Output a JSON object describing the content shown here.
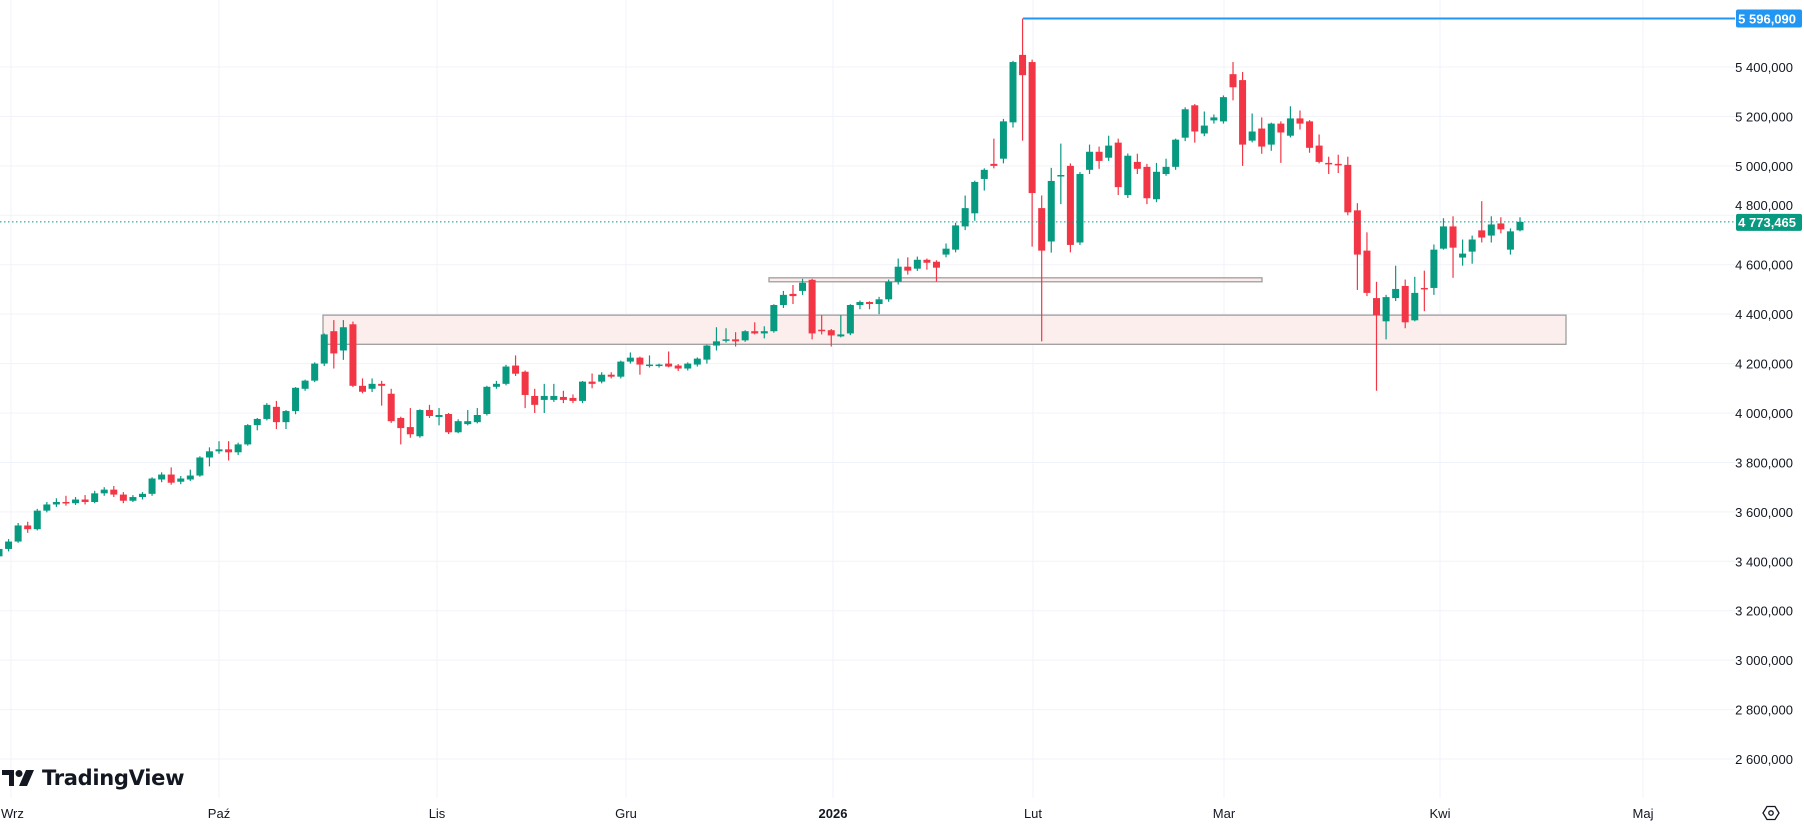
{
  "branding": {
    "logo_text": "TradingView"
  },
  "colors": {
    "up": "#089981",
    "down": "#f23645",
    "high_line": "#2196f3",
    "zone_fill": "#fdeeee",
    "zone_border": "#9e9e9e",
    "grid": "#f0f3fa"
  },
  "price_tags": {
    "high": "5 596,090",
    "last": "4 773,465"
  },
  "chart_data": {
    "type": "candlestick",
    "title": "",
    "ylim": [
      2500000,
      5620000
    ],
    "grid": true,
    "y_ticks": [
      5400000,
      5200000,
      5000000,
      4800000,
      4600000,
      4400000,
      4200000,
      4000000,
      3800000,
      3600000,
      3400000,
      3200000,
      3000000,
      2800000,
      2600000
    ],
    "y_tick_labels": [
      "5 400,000",
      "5 200,000",
      "5 000,000",
      "4 800,000",
      "4 600,000",
      "4 400,000",
      "4 200,000",
      "4 000,000",
      "3 800,000",
      "3 600,000",
      "3 400,000",
      "3 200,000",
      "3 000,000",
      "2 800,000",
      "2 600,000"
    ],
    "x_tick_labels": [
      "Wrz",
      "Paź",
      "Lis",
      "Gru",
      "2026",
      "Lut",
      "Mar",
      "Kwi",
      "Maj"
    ],
    "last_price": 4773465,
    "high_price": 5596090,
    "drawings": {
      "support_zone": {
        "top": 4396000,
        "bottom": 4278000
      },
      "resistance_box": {
        "top": 4547000,
        "bottom": 4531000
      },
      "high_line": 5596090
    },
    "ohlc_fields": [
      "open",
      "high",
      "low",
      "close"
    ],
    "candles": [
      [
        3420000,
        3460000,
        3405000,
        3450000
      ],
      [
        3450000,
        3490000,
        3440000,
        3480000
      ],
      [
        3480000,
        3555000,
        3475000,
        3545000
      ],
      [
        3545000,
        3560000,
        3515000,
        3530000
      ],
      [
        3530000,
        3612000,
        3525000,
        3605000
      ],
      [
        3605000,
        3640000,
        3598000,
        3630000
      ],
      [
        3630000,
        3655000,
        3620000,
        3640000
      ],
      [
        3640000,
        3665000,
        3625000,
        3635000
      ],
      [
        3635000,
        3660000,
        3628000,
        3650000
      ],
      [
        3650000,
        3668000,
        3630000,
        3640000
      ],
      [
        3640000,
        3685000,
        3635000,
        3675000
      ],
      [
        3675000,
        3700000,
        3665000,
        3690000
      ],
      [
        3690000,
        3705000,
        3660000,
        3670000
      ],
      [
        3670000,
        3680000,
        3635000,
        3645000
      ],
      [
        3645000,
        3668000,
        3640000,
        3660000
      ],
      [
        3660000,
        3680000,
        3650000,
        3673000
      ],
      [
        3673000,
        3740000,
        3665000,
        3735000
      ],
      [
        3731000,
        3760000,
        3720000,
        3751000
      ],
      [
        3751000,
        3780000,
        3710000,
        3718000
      ],
      [
        3722000,
        3745000,
        3712000,
        3735000
      ],
      [
        3731000,
        3771000,
        3725000,
        3747000
      ],
      [
        3747000,
        3825000,
        3742000,
        3820000
      ],
      [
        3820000,
        3861000,
        3784000,
        3845000
      ],
      [
        3845000,
        3886000,
        3835000,
        3853000
      ],
      [
        3853000,
        3886000,
        3808000,
        3841000
      ],
      [
        3841000,
        3880000,
        3830000,
        3873000
      ],
      [
        3873000,
        3955000,
        3868000,
        3951000
      ],
      [
        3951000,
        3980000,
        3930000,
        3976000
      ],
      [
        3976000,
        4040000,
        3970000,
        4033000
      ],
      [
        4025000,
        4049000,
        3935000,
        3963000
      ],
      [
        3963000,
        4012000,
        3935000,
        4008000
      ],
      [
        4008000,
        4105000,
        3995000,
        4102000
      ],
      [
        4098000,
        4135000,
        4090000,
        4131000
      ],
      [
        4131000,
        4205000,
        4125000,
        4200000
      ],
      [
        4200000,
        4322000,
        4190000,
        4318000
      ],
      [
        4331000,
        4376000,
        4180000,
        4241000
      ],
      [
        4253000,
        4376000,
        4215000,
        4347000
      ],
      [
        4359000,
        4370000,
        4105000,
        4110000
      ],
      [
        4110000,
        4140000,
        4080000,
        4086000
      ],
      [
        4098000,
        4140000,
        4085000,
        4118000
      ],
      [
        4118000,
        4130000,
        4030000,
        4110000
      ],
      [
        4078000,
        4098000,
        3960000,
        3967000
      ],
      [
        3980000,
        3985000,
        3873000,
        3939000
      ],
      [
        3943000,
        4020000,
        3900000,
        3914000
      ],
      [
        3906000,
        4015000,
        3900000,
        4012000
      ],
      [
        4012000,
        4033000,
        3980000,
        3988000
      ],
      [
        3984000,
        4020000,
        3950000,
        3992000
      ],
      [
        3996000,
        4000000,
        3915000,
        3922000
      ],
      [
        3922000,
        3975000,
        3918000,
        3967000
      ],
      [
        3955000,
        4012000,
        3950000,
        3967000
      ],
      [
        3963000,
        4020000,
        3958000,
        3992000
      ],
      [
        3996000,
        4110000,
        3990000,
        4106000
      ],
      [
        4106000,
        4130000,
        4098000,
        4118000
      ],
      [
        4118000,
        4195000,
        4112000,
        4188000
      ],
      [
        4192000,
        4233000,
        4150000,
        4159000
      ],
      [
        4167000,
        4172000,
        4020000,
        4073000
      ],
      [
        4069000,
        4098000,
        4000000,
        4033000
      ],
      [
        4053000,
        4118000,
        4000000,
        4069000
      ],
      [
        4053000,
        4118000,
        4045000,
        4069000
      ],
      [
        4065000,
        4090000,
        4040000,
        4053000
      ],
      [
        4061000,
        4075000,
        4040000,
        4049000
      ],
      [
        4049000,
        4130000,
        4040000,
        4127000
      ],
      [
        4127000,
        4160000,
        4100000,
        4118000
      ],
      [
        4127000,
        4165000,
        4120000,
        4155000
      ],
      [
        4155000,
        4165000,
        4140000,
        4147000
      ],
      [
        4147000,
        4212000,
        4140000,
        4208000
      ],
      [
        4208000,
        4245000,
        4200000,
        4224000
      ],
      [
        4224000,
        4228000,
        4155000,
        4196000
      ],
      [
        4190000,
        4233000,
        4184000,
        4196000
      ],
      [
        4192000,
        4200000,
        4184000,
        4196000
      ],
      [
        4200000,
        4249000,
        4185000,
        4188000
      ],
      [
        4192000,
        4198000,
        4170000,
        4180000
      ],
      [
        4180000,
        4205000,
        4172000,
        4200000
      ],
      [
        4196000,
        4225000,
        4188000,
        4220000
      ],
      [
        4216000,
        4276000,
        4200000,
        4273000
      ],
      [
        4273000,
        4347000,
        4253000,
        4290000
      ],
      [
        4294000,
        4343000,
        4285000,
        4298000
      ],
      [
        4298000,
        4327000,
        4269000,
        4290000
      ],
      [
        4294000,
        4335000,
        4288000,
        4331000
      ],
      [
        4331000,
        4367000,
        4318000,
        4322000
      ],
      [
        4322000,
        4351000,
        4302000,
        4331000
      ],
      [
        4331000,
        4440000,
        4325000,
        4437000
      ],
      [
        4437000,
        4494000,
        4425000,
        4478000
      ],
      [
        4482000,
        4518000,
        4441000,
        4473000
      ],
      [
        4494000,
        4543000,
        4478000,
        4527000
      ],
      [
        4539000,
        4543000,
        4298000,
        4322000
      ],
      [
        4337000,
        4396000,
        4318000,
        4333000
      ],
      [
        4335000,
        4340000,
        4269000,
        4314000
      ],
      [
        4310000,
        4396000,
        4306000,
        4318000
      ],
      [
        4322000,
        4440000,
        4315000,
        4437000
      ],
      [
        4437000,
        4455000,
        4420000,
        4449000
      ],
      [
        4449000,
        4452000,
        4420000,
        4441000
      ],
      [
        4441000,
        4470000,
        4400000,
        4460000
      ],
      [
        4460000,
        4540000,
        4450000,
        4531000
      ],
      [
        4531000,
        4625000,
        4520000,
        4592000
      ],
      [
        4592000,
        4630000,
        4560000,
        4576000
      ],
      [
        4584000,
        4633000,
        4575000,
        4620000
      ],
      [
        4620000,
        4625000,
        4580000,
        4608000
      ],
      [
        4612000,
        4618000,
        4531000,
        4588000
      ],
      [
        4641000,
        4686000,
        4630000,
        4665000
      ],
      [
        4661000,
        4770000,
        4650000,
        4759000
      ],
      [
        4755000,
        4880000,
        4740000,
        4829000
      ],
      [
        4808000,
        4940000,
        4778000,
        4935000
      ],
      [
        4947000,
        4990000,
        4900000,
        4984000
      ],
      [
        5008000,
        5110000,
        4990000,
        5000000
      ],
      [
        5029000,
        5190000,
        5010000,
        5180000
      ],
      [
        5176000,
        5425000,
        5155000,
        5420000
      ],
      [
        5449000,
        5596090,
        5102000,
        5367000
      ],
      [
        5420000,
        5430000,
        4673000,
        4890000
      ],
      [
        4829000,
        4880000,
        4290000,
        4657000
      ],
      [
        4694000,
        4992000,
        4649000,
        4939000
      ],
      [
        4959000,
        5090000,
        4845000,
        4963000
      ],
      [
        5000000,
        5010000,
        4650000,
        4680000
      ],
      [
        4690000,
        4975000,
        4680000,
        4967000
      ],
      [
        4984000,
        5086000,
        4967000,
        5057000
      ],
      [
        5057000,
        5078000,
        4988000,
        5020000
      ],
      [
        5033000,
        5122000,
        5020000,
        5082000
      ],
      [
        5094000,
        5110000,
        4882000,
        4914000
      ],
      [
        4882000,
        5050000,
        4870000,
        5041000
      ],
      [
        5016000,
        5049000,
        4967000,
        4988000
      ],
      [
        4996000,
        5008000,
        4845000,
        4869000
      ],
      [
        4865000,
        5012000,
        4853000,
        4976000
      ],
      [
        4967000,
        5029000,
        4960000,
        4996000
      ],
      [
        4996000,
        5110000,
        4984000,
        5106000
      ],
      [
        5114000,
        5237000,
        5100000,
        5229000
      ],
      [
        5245000,
        5250000,
        5094000,
        5139000
      ],
      [
        5131000,
        5220000,
        5120000,
        5163000
      ],
      [
        5184000,
        5208000,
        5171000,
        5196000
      ],
      [
        5180000,
        5285000,
        5171000,
        5278000
      ],
      [
        5371000,
        5420000,
        5265000,
        5318000
      ],
      [
        5347000,
        5380000,
        5000000,
        5086000
      ],
      [
        5102000,
        5212000,
        5095000,
        5139000
      ],
      [
        5151000,
        5196000,
        5049000,
        5078000
      ],
      [
        5086000,
        5175000,
        5061000,
        5171000
      ],
      [
        5171000,
        5180000,
        5012000,
        5135000
      ],
      [
        5122000,
        5241000,
        5115000,
        5192000
      ],
      [
        5192000,
        5224000,
        5147000,
        5171000
      ],
      [
        5180000,
        5185000,
        5053000,
        5073000
      ],
      [
        5082000,
        5127000,
        5010000,
        5016000
      ],
      [
        5012000,
        5037000,
        4967000,
        5008000
      ],
      [
        5008000,
        5045000,
        4971000,
        5004000
      ],
      [
        5004000,
        5037000,
        4800000,
        4812000
      ],
      [
        4820000,
        4849000,
        4498000,
        4641000
      ],
      [
        4657000,
        4731000,
        4473000,
        4486000
      ],
      [
        4465000,
        4531000,
        4090000,
        4396000
      ],
      [
        4371000,
        4478000,
        4298000,
        4469000
      ],
      [
        4465000,
        4596000,
        4453000,
        4502000
      ],
      [
        4514000,
        4540000,
        4343000,
        4367000
      ],
      [
        4375000,
        4551000,
        4371000,
        4486000
      ],
      [
        4506000,
        4576000,
        4412000,
        4502000
      ],
      [
        4506000,
        4682000,
        4478000,
        4661000
      ],
      [
        4665000,
        4788000,
        4661000,
        4755000
      ],
      [
        4755000,
        4796000,
        4547000,
        4669000
      ],
      [
        4629000,
        4702000,
        4596000,
        4645000
      ],
      [
        4653000,
        4718000,
        4604000,
        4702000
      ],
      [
        4739000,
        4857000,
        4690000,
        4710000
      ],
      [
        4718000,
        4796000,
        4690000,
        4763000
      ],
      [
        4767000,
        4792000,
        4727000,
        4743000
      ],
      [
        4661000,
        4747000,
        4641000,
        4735000
      ],
      [
        4739000,
        4792000,
        4735000,
        4773465
      ]
    ]
  }
}
